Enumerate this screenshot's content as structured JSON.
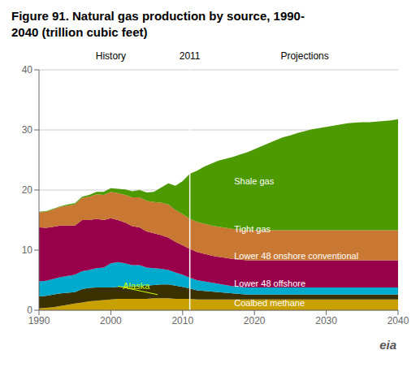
{
  "chart_data": {
    "type": "area",
    "stacked": true,
    "grid": true,
    "title": "Figure 91. Natural gas production by source, 1990-\n2040 (trillion cubic feet)",
    "x": [
      1990,
      1991,
      1992,
      1993,
      1994,
      1995,
      1996,
      1997,
      1998,
      1999,
      2000,
      2001,
      2002,
      2003,
      2004,
      2005,
      2006,
      2007,
      2008,
      2009,
      2010,
      2011,
      2012,
      2013,
      2014,
      2015,
      2016,
      2017,
      2018,
      2019,
      2020,
      2021,
      2022,
      2023,
      2024,
      2025,
      2026,
      2027,
      2028,
      2029,
      2030,
      2031,
      2032,
      2033,
      2034,
      2035,
      2036,
      2037,
      2038,
      2039,
      2040
    ],
    "xlim": [
      1990,
      2040
    ],
    "xticks": [
      1990,
      2000,
      2010,
      2020,
      2030,
      2040
    ],
    "ylim": [
      0,
      40
    ],
    "yticks": [
      0,
      10,
      20,
      30,
      40
    ],
    "series": [
      {
        "name": "Coalbed methane",
        "color": "#c8a000",
        "values": [
          0.3,
          0.4,
          0.5,
          0.7,
          0.9,
          1.1,
          1.3,
          1.5,
          1.6,
          1.7,
          1.8,
          1.9,
          1.9,
          1.9,
          1.9,
          1.9,
          2.0,
          2.0,
          2.0,
          1.9,
          1.9,
          1.9,
          1.8,
          1.8,
          1.8,
          1.8,
          1.8,
          1.8,
          1.8,
          1.8,
          1.8,
          1.8,
          1.8,
          1.8,
          1.8,
          1.8,
          1.8,
          1.8,
          1.8,
          1.8,
          1.8,
          1.8,
          1.8,
          1.8,
          1.8,
          1.8,
          1.8,
          1.8,
          1.8,
          1.8,
          1.8
        ]
      },
      {
        "name": "Alaska",
        "color": "#3b3000",
        "values": [
          2.0,
          2.0,
          2.1,
          2.1,
          2.0,
          1.9,
          2.2,
          2.2,
          2.2,
          2.1,
          2.0,
          2.0,
          2.1,
          2.1,
          2.1,
          2.2,
          2.2,
          2.3,
          2.3,
          2.2,
          2.0,
          1.7,
          1.5,
          1.4,
          1.3,
          1.2,
          1.1,
          1.0,
          0.9,
          0.8,
          0.8,
          0.8,
          0.8,
          0.8,
          0.8,
          0.8,
          0.8,
          0.8,
          0.8,
          0.8,
          0.8,
          0.8,
          0.8,
          0.8,
          0.8,
          0.8,
          0.8,
          0.8,
          0.8,
          0.8,
          0.8
        ]
      },
      {
        "name": "Lower 48 offshore",
        "color": "#00aacc",
        "values": [
          2.5,
          2.5,
          2.6,
          2.7,
          2.8,
          2.9,
          3.0,
          3.0,
          3.2,
          3.3,
          4.0,
          4.1,
          3.8,
          3.5,
          3.5,
          3.0,
          2.8,
          2.6,
          2.4,
          2.2,
          2.0,
          1.8,
          1.7,
          1.6,
          1.5,
          1.4,
          1.3,
          1.2,
          1.2,
          1.2,
          1.2,
          1.2,
          1.2,
          1.2,
          1.2,
          1.2,
          1.2,
          1.2,
          1.2,
          1.2,
          1.2,
          1.2,
          1.2,
          1.2,
          1.2,
          1.2,
          1.2,
          1.2,
          1.2,
          1.2,
          1.2
        ]
      },
      {
        "name": "Lower 48 onshore conventional",
        "color": "#99004c",
        "values": [
          9.0,
          8.8,
          8.7,
          8.6,
          8.4,
          8.2,
          8.5,
          8.3,
          8.2,
          7.9,
          7.5,
          7.0,
          6.8,
          6.5,
          6.3,
          6.0,
          5.8,
          5.6,
          5.4,
          5.1,
          4.9,
          4.8,
          4.7,
          4.6,
          4.5,
          4.5,
          4.5,
          4.5,
          4.5,
          4.5,
          4.5,
          4.5,
          4.5,
          4.5,
          4.5,
          4.5,
          4.5,
          4.5,
          4.5,
          4.5,
          4.5,
          4.5,
          4.5,
          4.5,
          4.5,
          4.5,
          4.5,
          4.5,
          4.5,
          4.5,
          4.5
        ]
      },
      {
        "name": "Tight gas",
        "color": "#c87832",
        "values": [
          2.5,
          2.7,
          2.9,
          3.1,
          3.3,
          3.5,
          3.7,
          3.9,
          4.1,
          4.2,
          4.4,
          4.5,
          4.6,
          4.8,
          5.0,
          5.1,
          5.2,
          5.4,
          5.5,
          5.3,
          5.2,
          5.0,
          5.0,
          5.0,
          5.0,
          5.0,
          5.0,
          5.0,
          5.0,
          5.0,
          5.0,
          5.0,
          5.0,
          5.0,
          5.0,
          5.0,
          5.0,
          5.0,
          5.0,
          5.0,
          5.0,
          5.0,
          5.0,
          5.0,
          5.0,
          5.0,
          5.0,
          5.0,
          5.0,
          5.0,
          5.0
        ]
      },
      {
        "name": "Shale gas",
        "color": "#4c9900",
        "values": [
          0.1,
          0.1,
          0.1,
          0.1,
          0.2,
          0.2,
          0.2,
          0.3,
          0.4,
          0.5,
          0.6,
          0.7,
          0.9,
          1.0,
          1.2,
          1.4,
          1.7,
          2.5,
          3.5,
          4.0,
          5.5,
          7.5,
          8.5,
          9.5,
          10.3,
          11.0,
          11.5,
          12.0,
          12.5,
          13.0,
          13.5,
          14.0,
          14.5,
          15.0,
          15.5,
          15.8,
          16.2,
          16.5,
          16.8,
          17.0,
          17.2,
          17.4,
          17.6,
          17.8,
          17.9,
          18.0,
          18.0,
          18.1,
          18.2,
          18.3,
          18.5
        ]
      }
    ],
    "annotations": [
      {
        "type": "vline",
        "x": 2011,
        "color": "white"
      },
      {
        "text": "History",
        "x": 2000,
        "y": 41,
        "color": "black"
      },
      {
        "text": "2011",
        "x": 2011,
        "y": 41,
        "color": "black"
      },
      {
        "text": "Projections",
        "x": 2027,
        "y": 41,
        "color": "black"
      },
      {
        "text": "Shale gas",
        "x": 2016.5,
        "y": 21.5,
        "color": "white"
      },
      {
        "text": "Tight gas",
        "x": 2016.5,
        "y": 13.5,
        "color": "white"
      },
      {
        "text": "Lower 48 onshore conventional",
        "x": 2016.5,
        "y": 9.0,
        "color": "white"
      },
      {
        "text": "Lower 48 offshore",
        "x": 2016.5,
        "y": 4.5,
        "color": "white"
      },
      {
        "text": "Coalbed methane",
        "x": 2016.5,
        "y": 1.2,
        "color": "white"
      },
      {
        "text": "Alaska",
        "x": 2001.0,
        "y": 4.0,
        "color": "#ccff00",
        "arrow_to": [
          2006.5,
          2.6
        ]
      },
      {
        "text": "eia",
        "color": "#555555"
      }
    ]
  }
}
